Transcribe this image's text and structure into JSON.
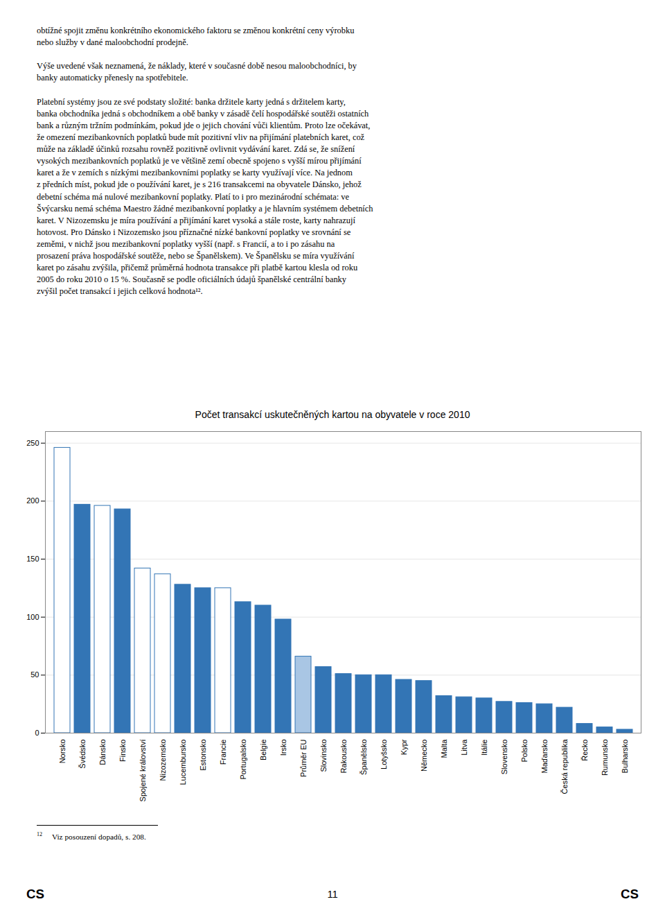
{
  "chart_data": {
    "type": "bar",
    "title": "Počet transakcí uskutečněných kartou na obyvatele v roce 2010",
    "categories": [
      "Norsko",
      "Švédsko",
      "Dánsko",
      "Finsko",
      "Spojené království",
      "Nizozemsko",
      "Lucembursko",
      "Estonsko",
      "Francie",
      "Portugalsko",
      "Belgie",
      "Irsko",
      "Průměr EU",
      "Slovinsko",
      "Rakousko",
      "Španělsko",
      "Lotyšsko",
      "Kypr",
      "Německo",
      "Malta",
      "Litva",
      "Itálie",
      "Slovensko",
      "Polsko",
      "Maďarsko",
      "Česká republika",
      "Řecko",
      "Rumunsko",
      "Bulharsko"
    ],
    "values": [
      246,
      197,
      196,
      193,
      142,
      137,
      128,
      125,
      125,
      113,
      110,
      98,
      66,
      57,
      51,
      50,
      50,
      46,
      45,
      32,
      31,
      30,
      27,
      26,
      25,
      22,
      8,
      5,
      3
    ],
    "color": "#3375B5",
    "colors": [
      "#ffffff",
      "#3375B5",
      "#ffffff",
      "#3375B5",
      "#ffffff",
      "#ffffff",
      "#3375B5",
      "#3375B5",
      "#ffffff",
      "#3375B5",
      "#3375B5",
      "#3375B5",
      "#a9c6e4",
      "#3375B5",
      "#3375B5",
      "#3375B5",
      "#3375B5",
      "#3375B5",
      "#3375B5",
      "#3375B5",
      "#3375B5",
      "#3375B5",
      "#3375B5",
      "#3375B5",
      "#3375B5",
      "#3375B5",
      "#3375B5",
      "#3375B5",
      "#3375B5"
    ],
    "ylim": [
      0,
      260
    ],
    "yticks": [
      0,
      50,
      100,
      150,
      200,
      250
    ],
    "grid": true
  },
  "body_text": "obtížné spojit změnu konkrétního ekonomického faktoru se změnou konkrétní ceny výrobku\nnebo služby v dané maloobchodní prodejně.\n\nVýše uvedené však neznamená, že náklady, které v současné době nesou maloobchodníci, by\nbanky automaticky přenesly na spotřebitele.\n\nPlatební systémy jsou ze své podstaty složité: banka držitele karty jedná s držitelem karty,\nbanka obchodníka jedná s obchodníkem a obě banky v zásadě čelí hospodářské soutěži ostatních\nbank a různým tržním podmínkám, pokud jde o jejich chování vůči klientům. Proto lze očekávat,\nže omezení mezibankovních poplatků bude mít pozitivní vliv na přijímání platebních karet, což\nmůže na základě účinků rozsahu rovněž pozitivně ovlivnit vydávání karet. Zdá se, že snížení\nvysokých mezibankovních poplatků je ve většině zemí obecně spojeno s vyšší mírou přijímání\nkaret a že v zemích s nízkými mezibankovními poplatky se karty využívají více. Na jednom\nz předních míst, pokud jde o používání karet, je s 216 transakcemi na obyvatele Dánsko, jehož\ndebetní schéma má nulové mezibankovní poplatky. Platí to i pro mezinárodní schémata: ve\nŠvýcarsku nemá schéma Maestro žádné mezibankovní poplatky a je hlavním systémem debetních\nkaret. V Nizozemsku je míra používání a přijímání karet vysoká a stále roste, karty nahrazují\nhotovost. Pro Dánsko i Nizozemsko jsou příznačné nízké bankovní poplatky ve srovnání se\nzeměmi, v nichž jsou mezibankovní poplatky vyšší (např. s Francií, a to i po zásahu na\nprosazení práva hospodářské soutěže, nebo se Španělskem). Ve Španělsku se míra využívání\nkaret po zásahu zvýšila, přičemž průměrná hodnota transakce při platbě kartou klesla od roku\n2005 do roku 2010 o 15 %. Současně se podle oficiálních údajů španělské centrální banky\nzvýšil počet transakcí i jejich celková hodnota¹².",
  "footnote": {
    "number": "12",
    "text": "Viz posouzení dopadů, s. 208."
  },
  "footer": {
    "left": "CS",
    "center": "11",
    "right": "CS"
  }
}
